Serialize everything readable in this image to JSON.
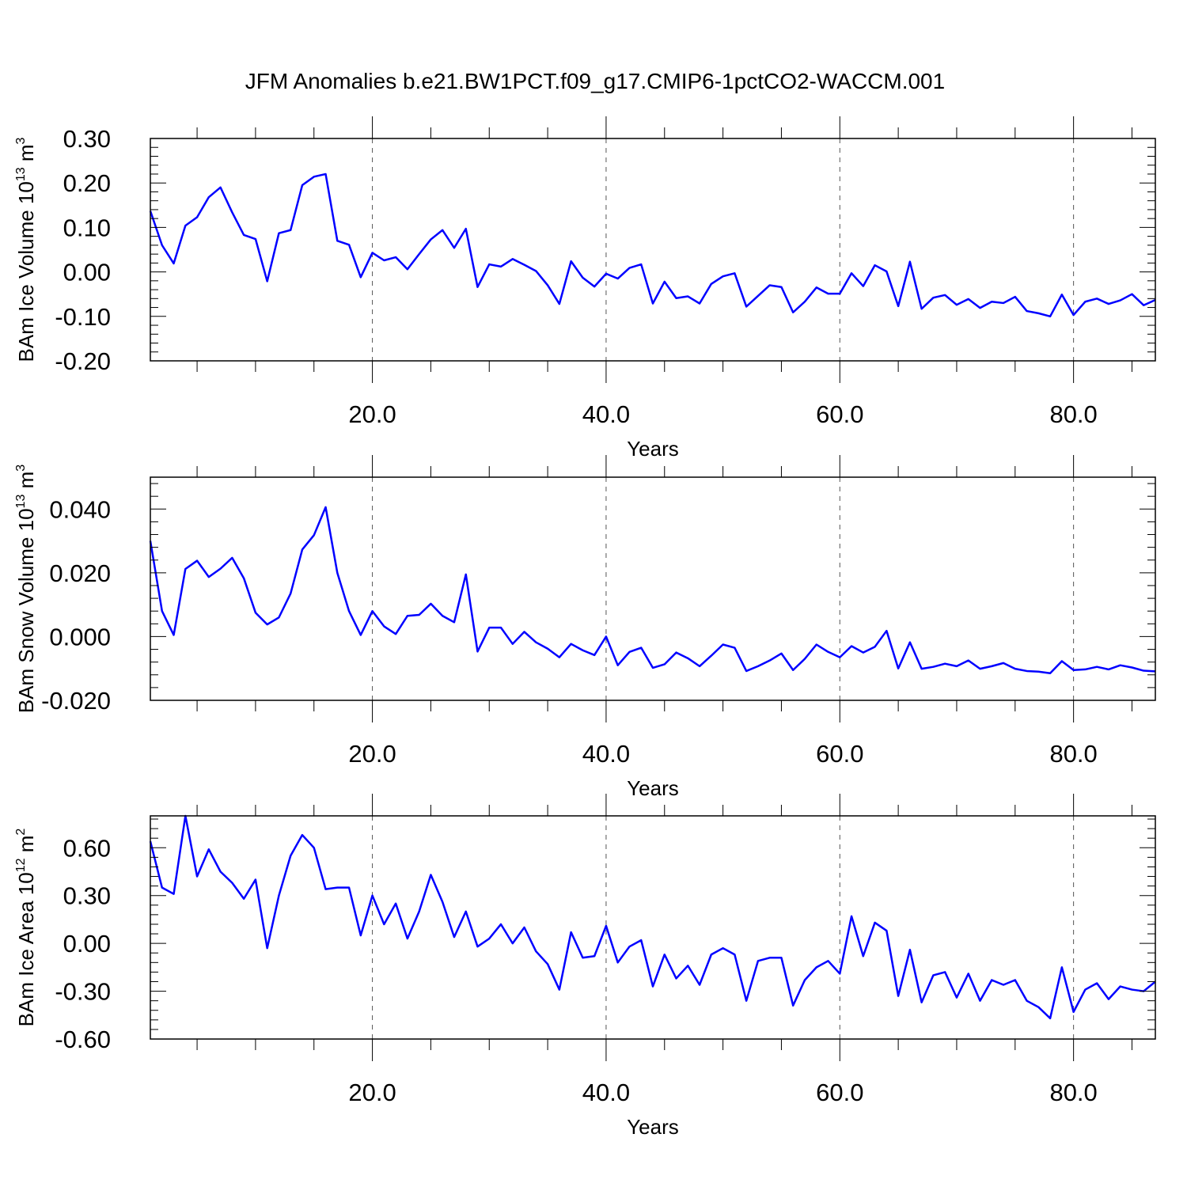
{
  "title": "JFM Anomalies b.e21.BW1PCT.f09_g17.CMIP6-1pctCO2-WACCM.001",
  "colors": {
    "line": "#0000ff",
    "axis": "#000000",
    "grid": "#555555"
  },
  "chart_data": [
    {
      "type": "line",
      "ylabel": {
        "base": "BAm Ice Volume 10",
        "exp": "13",
        "unit": " m",
        "unit_exp": "3"
      },
      "xlabel": "Years",
      "xlim": [
        1,
        87
      ],
      "ylim": [
        -0.2,
        0.3
      ],
      "yticks": [
        -0.2,
        -0.1,
        0.0,
        0.1,
        0.2,
        0.3
      ],
      "ytick_labels": [
        "-0.20",
        "-0.10",
        "0.00",
        "0.10",
        "0.20",
        "0.30"
      ],
      "xticks": [
        20,
        40,
        60,
        80
      ],
      "xtick_labels": [
        "20.0",
        "40.0",
        "60.0",
        "80.0"
      ],
      "grid": "vertical dashed at major x ticks",
      "series": [
        {
          "x_start": 1,
          "values": [
            0.137,
            0.06,
            0.019,
            0.104,
            0.123,
            0.168,
            0.19,
            0.134,
            0.083,
            0.074,
            -0.021,
            0.087,
            0.094,
            0.195,
            0.214,
            0.22,
            0.07,
            0.061,
            -0.012,
            0.043,
            0.026,
            0.033,
            0.006,
            0.04,
            0.073,
            0.094,
            0.054,
            0.097,
            -0.034,
            0.017,
            0.012,
            0.029,
            0.016,
            0.002,
            -0.03,
            -0.072,
            0.024,
            -0.013,
            -0.033,
            -0.004,
            -0.015,
            0.009,
            0.017,
            -0.071,
            -0.022,
            -0.059,
            -0.055,
            -0.071,
            -0.027,
            -0.01,
            -0.003,
            -0.078,
            -0.054,
            -0.03,
            -0.034,
            -0.091,
            -0.067,
            -0.035,
            -0.049,
            -0.049,
            -0.003,
            -0.032,
            0.015,
            0.001,
            -0.077,
            0.023,
            -0.083,
            -0.058,
            -0.052,
            -0.074,
            -0.061,
            -0.081,
            -0.067,
            -0.07,
            -0.056,
            -0.088,
            -0.093,
            -0.1,
            -0.051,
            -0.097,
            -0.067,
            -0.06,
            -0.072,
            -0.064,
            -0.05,
            -0.075,
            -0.063
          ]
        }
      ]
    },
    {
      "type": "line",
      "ylabel": {
        "base": "BAm Snow Volume 10",
        "exp": "13",
        "unit": " m",
        "unit_exp": "3"
      },
      "xlabel": "Years",
      "xlim": [
        1,
        87
      ],
      "ylim": [
        -0.02,
        0.05
      ],
      "yticks": [
        -0.02,
        0.0,
        0.02,
        0.04
      ],
      "ytick_labels": [
        "-0.020",
        "0.000",
        "0.020",
        "0.040"
      ],
      "xticks": [
        20,
        40,
        60,
        80
      ],
      "xtick_labels": [
        "20.0",
        "40.0",
        "60.0",
        "80.0"
      ],
      "grid": "vertical dashed at major x ticks",
      "series": [
        {
          "x_start": 1,
          "values": [
            0.03,
            0.008,
            0.0005,
            0.0212,
            0.0238,
            0.0187,
            0.0213,
            0.0247,
            0.0183,
            0.0075,
            0.0038,
            0.006,
            0.0135,
            0.0273,
            0.0318,
            0.0406,
            0.02,
            0.008,
            0.0005,
            0.008,
            0.0032,
            0.0008,
            0.0065,
            0.0068,
            0.0103,
            0.0065,
            0.0045,
            0.0195,
            -0.0047,
            0.0028,
            0.0028,
            -0.0023,
            0.0015,
            -0.0018,
            -0.0038,
            -0.0065,
            -0.0023,
            -0.0043,
            -0.0058,
            0.0,
            -0.009,
            -0.0048,
            -0.0035,
            -0.0098,
            -0.0087,
            -0.005,
            -0.0068,
            -0.0093,
            -0.006,
            -0.0025,
            -0.0035,
            -0.0108,
            -0.0093,
            -0.0075,
            -0.0053,
            -0.0105,
            -0.007,
            -0.0025,
            -0.0048,
            -0.0065,
            -0.003,
            -0.005,
            -0.0032,
            0.0018,
            -0.01,
            -0.0018,
            -0.0101,
            -0.0095,
            -0.0085,
            -0.0093,
            -0.0075,
            -0.0101,
            -0.0093,
            -0.0083,
            -0.0101,
            -0.0108,
            -0.011,
            -0.0115,
            -0.0077,
            -0.0105,
            -0.0103,
            -0.0095,
            -0.0103,
            -0.009,
            -0.0097,
            -0.0107,
            -0.0109
          ]
        }
      ]
    },
    {
      "type": "line",
      "ylabel": {
        "base": "BAm Ice Area 10",
        "exp": "12",
        "unit": " m",
        "unit_exp": "2"
      },
      "xlabel": "Years",
      "xlim": [
        1,
        87
      ],
      "ylim": [
        -0.6,
        0.8
      ],
      "yticks": [
        -0.6,
        -0.3,
        0.0,
        0.3,
        0.6
      ],
      "ytick_labels": [
        "-0.60",
        "-0.30",
        "0.00",
        "0.30",
        "0.60"
      ],
      "xticks": [
        20,
        40,
        60,
        80
      ],
      "xtick_labels": [
        "20.0",
        "40.0",
        "60.0",
        "80.0"
      ],
      "grid": "vertical dashed at major x ticks",
      "series": [
        {
          "x_start": 1,
          "values": [
            0.64,
            0.35,
            0.31,
            0.8,
            0.42,
            0.59,
            0.45,
            0.38,
            0.28,
            0.4,
            -0.03,
            0.3,
            0.55,
            0.68,
            0.6,
            0.34,
            0.35,
            0.35,
            0.05,
            0.3,
            0.12,
            0.25,
            0.03,
            0.2,
            0.43,
            0.26,
            0.04,
            0.2,
            -0.02,
            0.03,
            0.12,
            0.0,
            0.1,
            -0.05,
            -0.13,
            -0.29,
            0.07,
            -0.09,
            -0.08,
            0.11,
            -0.12,
            -0.02,
            0.02,
            -0.27,
            -0.07,
            -0.22,
            -0.14,
            -0.26,
            -0.07,
            -0.03,
            -0.07,
            -0.36,
            -0.11,
            -0.09,
            -0.09,
            -0.39,
            -0.23,
            -0.15,
            -0.11,
            -0.19,
            0.17,
            -0.08,
            0.13,
            0.08,
            -0.33,
            -0.04,
            -0.37,
            -0.2,
            -0.18,
            -0.34,
            -0.19,
            -0.36,
            -0.23,
            -0.26,
            -0.23,
            -0.36,
            -0.4,
            -0.47,
            -0.15,
            -0.43,
            -0.29,
            -0.25,
            -0.35,
            -0.27,
            -0.29,
            -0.3,
            -0.24
          ]
        }
      ]
    }
  ]
}
